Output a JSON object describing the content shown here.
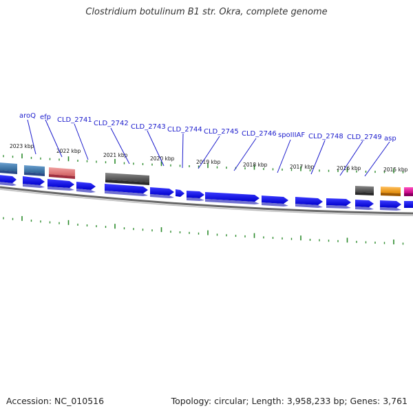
{
  "title": "Clostridium botulinum B1 str. Okra, complete genome",
  "accession": "Accession: NC_010516",
  "topology": "Topology: circular; Length: 3,958,233 bp; Genes: 3,761",
  "colors": {
    "forward_gene": "#1010ee",
    "dark_gray_block": "#555555",
    "steel_blue_block": "#3d7ab0",
    "pink_block": "#e08080",
    "orange_block": "#f7a21a",
    "magenta_block": "#e1189a",
    "backbone": "#888888",
    "tick": "#2a8a2a",
    "label_line": "#1a1acc"
  },
  "ticks": [
    "2023 kbp",
    "2022 kbp",
    "2021 kbp",
    "2020 kbp",
    "2019 kbp",
    "2018 kbp",
    "2017 kbp",
    "2016 kbp",
    "2015 kbp"
  ],
  "gene_labels": [
    "aroQ",
    "efp",
    "CLD_2741",
    "CLD_2742",
    "CLD_2743",
    "CLD_2744",
    "CLD_2745",
    "CLD_2746",
    "spoIIIAF",
    "CLD_2748",
    "CLD_2749",
    "asp"
  ]
}
